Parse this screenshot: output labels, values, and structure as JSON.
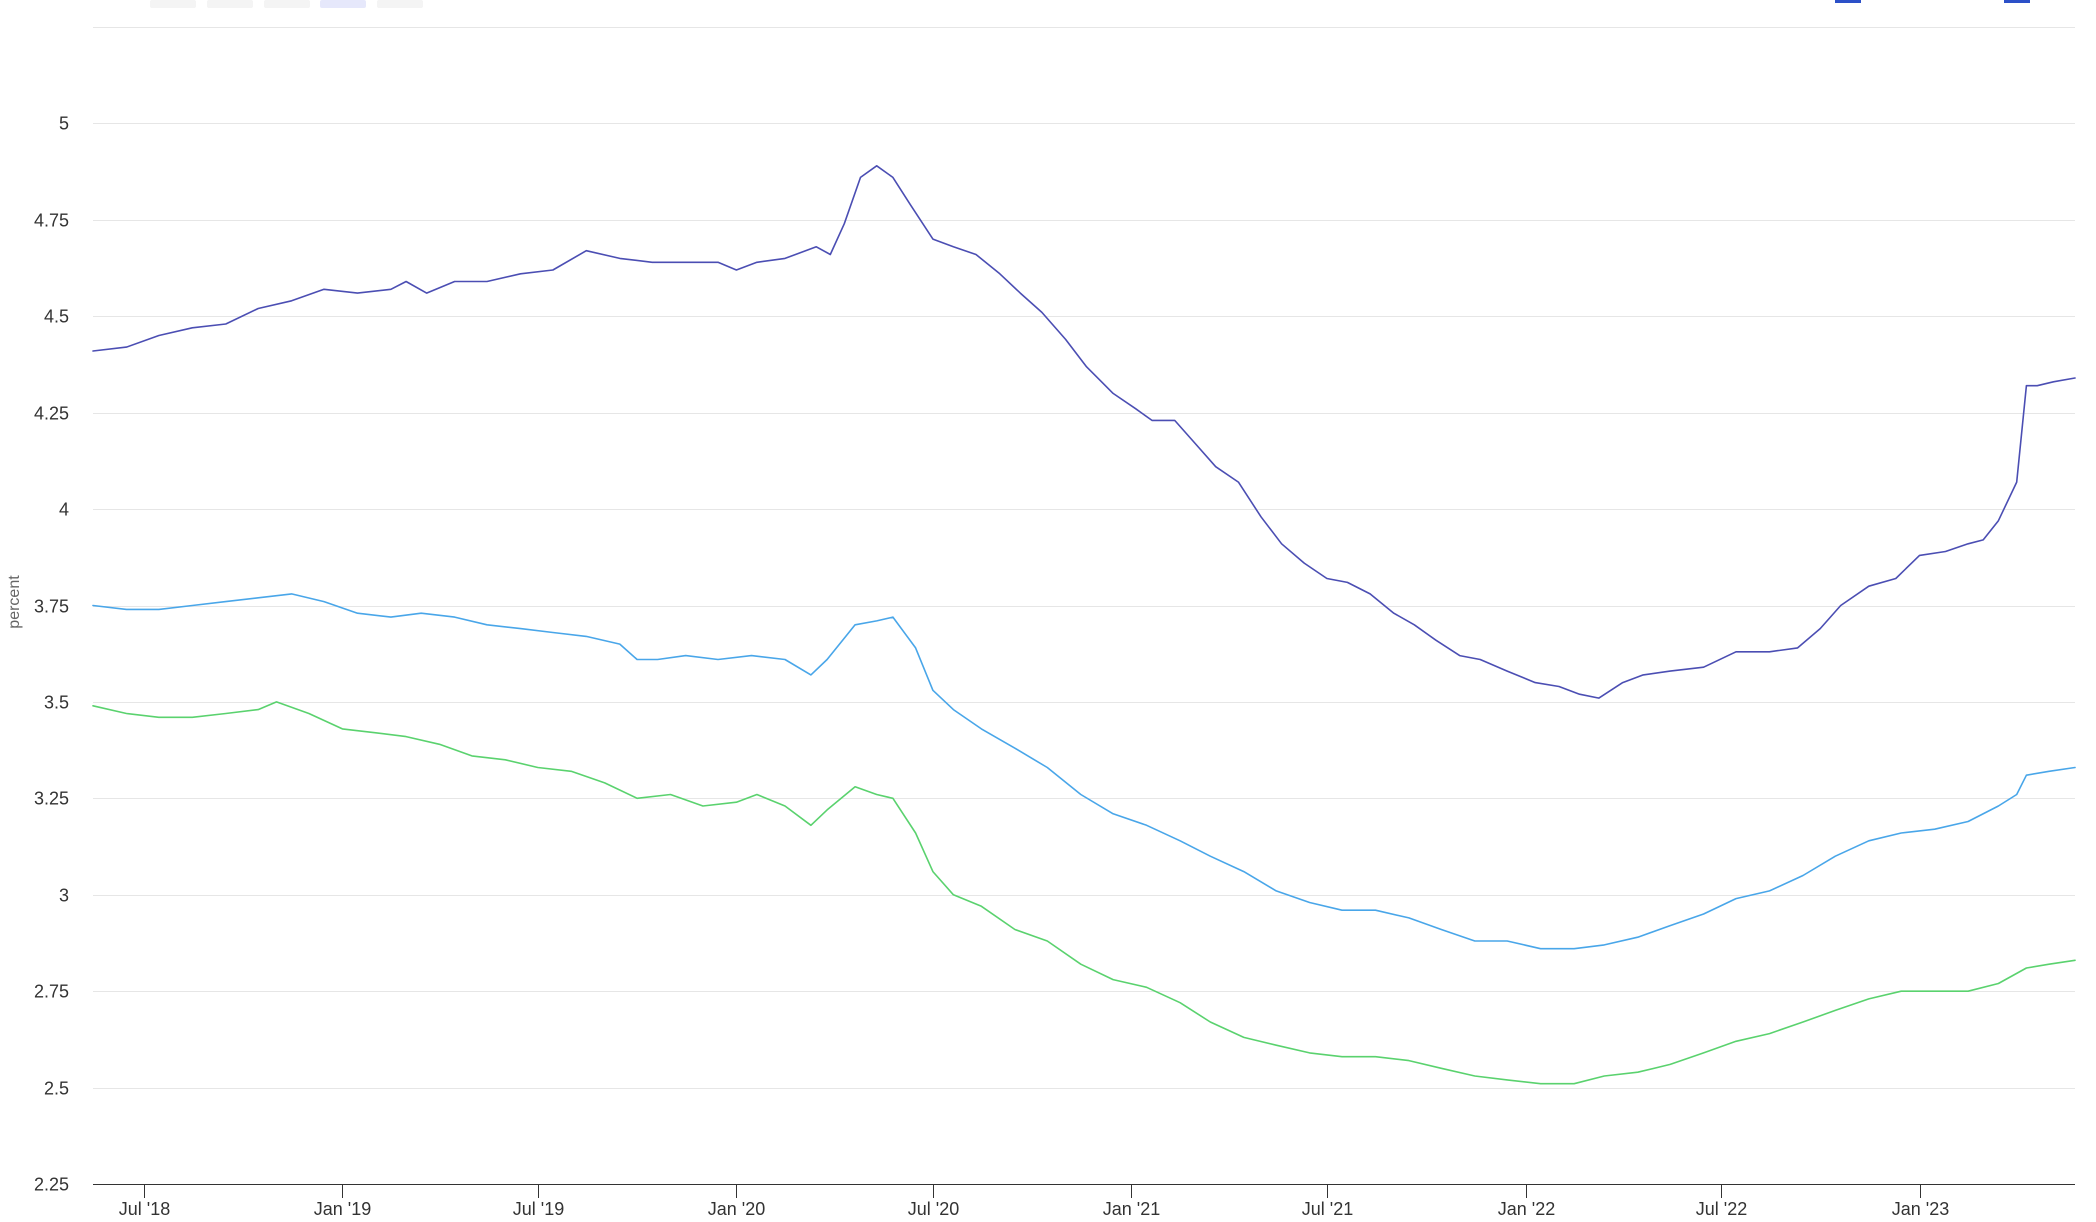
{
  "chart_data": {
    "type": "line",
    "ylabel": "percent",
    "ylim": [
      2.25,
      5.25
    ],
    "y_ticks": [
      "2.25",
      "2.5",
      "2.75",
      "3",
      "3.25",
      "3.5",
      "3.75",
      "4",
      "4.25",
      "4.5",
      "4.75",
      "5"
    ],
    "xlim": [
      "2018-05-15",
      "2023-05-25"
    ],
    "x_ticks": [
      {
        "date": "2018-07-01",
        "label": "Jul '18"
      },
      {
        "date": "2019-01-01",
        "label": "Jan '19"
      },
      {
        "date": "2019-07-01",
        "label": "Jul '19"
      },
      {
        "date": "2020-01-01",
        "label": "Jan '20"
      },
      {
        "date": "2020-07-01",
        "label": "Jul '20"
      },
      {
        "date": "2021-01-01",
        "label": "Jan '21"
      },
      {
        "date": "2021-07-01",
        "label": "Jul '21"
      },
      {
        "date": "2022-01-01",
        "label": "Jan '22"
      },
      {
        "date": "2022-07-01",
        "label": "Jul '22"
      },
      {
        "date": "2023-01-01",
        "label": "Jan '23"
      }
    ],
    "grid": true,
    "legend": "none",
    "range_selector": {
      "buttons": 5,
      "active_index": 3
    },
    "series": [
      {
        "color": "#4b4eb3",
        "points": [
          [
            "2018-05-15",
            4.41
          ],
          [
            "2018-06-15",
            4.42
          ],
          [
            "2018-07-15",
            4.45
          ],
          [
            "2018-08-15",
            4.47
          ],
          [
            "2018-09-15",
            4.48
          ],
          [
            "2018-10-15",
            4.52
          ],
          [
            "2018-11-15",
            4.54
          ],
          [
            "2018-12-15",
            4.57
          ],
          [
            "2019-01-15",
            4.56
          ],
          [
            "2019-02-15",
            4.57
          ],
          [
            "2019-03-01",
            4.59
          ],
          [
            "2019-03-20",
            4.56
          ],
          [
            "2019-04-15",
            4.59
          ],
          [
            "2019-05-15",
            4.59
          ],
          [
            "2019-06-15",
            4.61
          ],
          [
            "2019-07-15",
            4.62
          ],
          [
            "2019-08-15",
            4.67
          ],
          [
            "2019-09-15",
            4.65
          ],
          [
            "2019-10-15",
            4.64
          ],
          [
            "2019-11-15",
            4.64
          ],
          [
            "2019-12-15",
            4.64
          ],
          [
            "2020-01-01",
            4.62
          ],
          [
            "2020-01-20",
            4.64
          ],
          [
            "2020-02-15",
            4.65
          ],
          [
            "2020-03-15",
            4.68
          ],
          [
            "2020-03-28",
            4.66
          ],
          [
            "2020-04-10",
            4.74
          ],
          [
            "2020-04-25",
            4.86
          ],
          [
            "2020-05-10",
            4.89
          ],
          [
            "2020-05-25",
            4.86
          ],
          [
            "2020-06-10",
            4.79
          ],
          [
            "2020-07-01",
            4.7
          ],
          [
            "2020-07-20",
            4.68
          ],
          [
            "2020-08-10",
            4.66
          ],
          [
            "2020-09-01",
            4.61
          ],
          [
            "2020-09-20",
            4.56
          ],
          [
            "2020-10-10",
            4.51
          ],
          [
            "2020-11-01",
            4.44
          ],
          [
            "2020-11-20",
            4.37
          ],
          [
            "2020-12-15",
            4.3
          ],
          [
            "2021-01-05",
            4.26
          ],
          [
            "2021-01-20",
            4.23
          ],
          [
            "2021-02-10",
            4.23
          ],
          [
            "2021-03-01",
            4.17
          ],
          [
            "2021-03-20",
            4.11
          ],
          [
            "2021-04-10",
            4.07
          ],
          [
            "2021-05-01",
            3.98
          ],
          [
            "2021-05-20",
            3.91
          ],
          [
            "2021-06-10",
            3.86
          ],
          [
            "2021-07-01",
            3.82
          ],
          [
            "2021-07-20",
            3.81
          ],
          [
            "2021-08-10",
            3.78
          ],
          [
            "2021-09-01",
            3.73
          ],
          [
            "2021-09-20",
            3.7
          ],
          [
            "2021-10-10",
            3.66
          ],
          [
            "2021-11-01",
            3.62
          ],
          [
            "2021-11-20",
            3.61
          ],
          [
            "2021-12-15",
            3.58
          ],
          [
            "2022-01-10",
            3.55
          ],
          [
            "2022-02-01",
            3.54
          ],
          [
            "2022-02-20",
            3.52
          ],
          [
            "2022-03-10",
            3.51
          ],
          [
            "2022-04-01",
            3.55
          ],
          [
            "2022-04-20",
            3.57
          ],
          [
            "2022-05-15",
            3.58
          ],
          [
            "2022-06-15",
            3.59
          ],
          [
            "2022-07-15",
            3.63
          ],
          [
            "2022-08-15",
            3.63
          ],
          [
            "2022-09-10",
            3.64
          ],
          [
            "2022-10-01",
            3.69
          ],
          [
            "2022-10-20",
            3.75
          ],
          [
            "2022-11-15",
            3.8
          ],
          [
            "2022-12-10",
            3.82
          ],
          [
            "2023-01-01",
            3.88
          ],
          [
            "2023-01-25",
            3.89
          ],
          [
            "2023-02-15",
            3.91
          ],
          [
            "2023-03-01",
            3.92
          ],
          [
            "2023-03-15",
            3.97
          ],
          [
            "2023-04-01",
            4.07
          ],
          [
            "2023-04-10",
            4.32
          ],
          [
            "2023-04-20",
            4.32
          ],
          [
            "2023-05-05",
            4.33
          ],
          [
            "2023-05-25",
            4.34
          ]
        ]
      },
      {
        "color": "#49a6e9",
        "points": [
          [
            "2018-05-15",
            3.75
          ],
          [
            "2018-06-15",
            3.74
          ],
          [
            "2018-07-15",
            3.74
          ],
          [
            "2018-08-15",
            3.75
          ],
          [
            "2018-09-15",
            3.76
          ],
          [
            "2018-10-15",
            3.77
          ],
          [
            "2018-11-15",
            3.78
          ],
          [
            "2018-12-15",
            3.76
          ],
          [
            "2019-01-15",
            3.73
          ],
          [
            "2019-02-15",
            3.72
          ],
          [
            "2019-03-15",
            3.73
          ],
          [
            "2019-04-15",
            3.72
          ],
          [
            "2019-05-15",
            3.7
          ],
          [
            "2019-06-15",
            3.69
          ],
          [
            "2019-07-15",
            3.68
          ],
          [
            "2019-08-15",
            3.67
          ],
          [
            "2019-09-15",
            3.65
          ],
          [
            "2019-10-01",
            3.61
          ],
          [
            "2019-10-20",
            3.61
          ],
          [
            "2019-11-15",
            3.62
          ],
          [
            "2019-12-15",
            3.61
          ],
          [
            "2020-01-15",
            3.62
          ],
          [
            "2020-02-15",
            3.61
          ],
          [
            "2020-03-10",
            3.57
          ],
          [
            "2020-03-25",
            3.61
          ],
          [
            "2020-04-20",
            3.7
          ],
          [
            "2020-05-10",
            3.71
          ],
          [
            "2020-05-25",
            3.72
          ],
          [
            "2020-06-15",
            3.64
          ],
          [
            "2020-07-01",
            3.53
          ],
          [
            "2020-07-20",
            3.48
          ],
          [
            "2020-08-15",
            3.43
          ],
          [
            "2020-09-15",
            3.38
          ],
          [
            "2020-10-15",
            3.33
          ],
          [
            "2020-11-15",
            3.26
          ],
          [
            "2020-12-15",
            3.21
          ],
          [
            "2021-01-15",
            3.18
          ],
          [
            "2021-02-15",
            3.14
          ],
          [
            "2021-03-15",
            3.1
          ],
          [
            "2021-04-15",
            3.06
          ],
          [
            "2021-05-15",
            3.01
          ],
          [
            "2021-06-15",
            2.98
          ],
          [
            "2021-07-15",
            2.96
          ],
          [
            "2021-08-15",
            2.96
          ],
          [
            "2021-09-15",
            2.94
          ],
          [
            "2021-10-15",
            2.91
          ],
          [
            "2021-11-15",
            2.88
          ],
          [
            "2021-12-15",
            2.88
          ],
          [
            "2022-01-15",
            2.86
          ],
          [
            "2022-02-15",
            2.86
          ],
          [
            "2022-03-15",
            2.87
          ],
          [
            "2022-04-15",
            2.89
          ],
          [
            "2022-05-15",
            2.92
          ],
          [
            "2022-06-15",
            2.95
          ],
          [
            "2022-07-15",
            2.99
          ],
          [
            "2022-08-15",
            3.01
          ],
          [
            "2022-09-15",
            3.05
          ],
          [
            "2022-10-15",
            3.1
          ],
          [
            "2022-11-15",
            3.14
          ],
          [
            "2022-12-15",
            3.16
          ],
          [
            "2023-01-15",
            3.17
          ],
          [
            "2023-02-15",
            3.19
          ],
          [
            "2023-03-15",
            3.23
          ],
          [
            "2023-04-01",
            3.26
          ],
          [
            "2023-04-10",
            3.31
          ],
          [
            "2023-05-01",
            3.32
          ],
          [
            "2023-05-25",
            3.33
          ]
        ]
      },
      {
        "color": "#5ad26e",
        "points": [
          [
            "2018-05-15",
            3.49
          ],
          [
            "2018-06-15",
            3.47
          ],
          [
            "2018-07-15",
            3.46
          ],
          [
            "2018-08-15",
            3.46
          ],
          [
            "2018-09-15",
            3.47
          ],
          [
            "2018-10-15",
            3.48
          ],
          [
            "2018-11-01",
            3.5
          ],
          [
            "2018-12-01",
            3.47
          ],
          [
            "2019-01-01",
            3.43
          ],
          [
            "2019-02-01",
            3.42
          ],
          [
            "2019-03-01",
            3.41
          ],
          [
            "2019-04-01",
            3.39
          ],
          [
            "2019-05-01",
            3.36
          ],
          [
            "2019-06-01",
            3.35
          ],
          [
            "2019-07-01",
            3.33
          ],
          [
            "2019-08-01",
            3.32
          ],
          [
            "2019-09-01",
            3.29
          ],
          [
            "2019-10-01",
            3.25
          ],
          [
            "2019-11-01",
            3.26
          ],
          [
            "2019-12-01",
            3.23
          ],
          [
            "2020-01-01",
            3.24
          ],
          [
            "2020-01-20",
            3.26
          ],
          [
            "2020-02-15",
            3.23
          ],
          [
            "2020-03-10",
            3.18
          ],
          [
            "2020-03-25",
            3.22
          ],
          [
            "2020-04-20",
            3.28
          ],
          [
            "2020-05-10",
            3.26
          ],
          [
            "2020-05-25",
            3.25
          ],
          [
            "2020-06-15",
            3.16
          ],
          [
            "2020-07-01",
            3.06
          ],
          [
            "2020-07-20",
            3.0
          ],
          [
            "2020-08-15",
            2.97
          ],
          [
            "2020-09-15",
            2.91
          ],
          [
            "2020-10-15",
            2.88
          ],
          [
            "2020-11-15",
            2.82
          ],
          [
            "2020-12-15",
            2.78
          ],
          [
            "2021-01-15",
            2.76
          ],
          [
            "2021-02-15",
            2.72
          ],
          [
            "2021-03-15",
            2.67
          ],
          [
            "2021-04-15",
            2.63
          ],
          [
            "2021-05-15",
            2.61
          ],
          [
            "2021-06-15",
            2.59
          ],
          [
            "2021-07-15",
            2.58
          ],
          [
            "2021-08-15",
            2.58
          ],
          [
            "2021-09-15",
            2.57
          ],
          [
            "2021-10-15",
            2.55
          ],
          [
            "2021-11-15",
            2.53
          ],
          [
            "2021-12-15",
            2.52
          ],
          [
            "2022-01-15",
            2.51
          ],
          [
            "2022-02-15",
            2.51
          ],
          [
            "2022-03-15",
            2.53
          ],
          [
            "2022-04-15",
            2.54
          ],
          [
            "2022-05-15",
            2.56
          ],
          [
            "2022-06-15",
            2.59
          ],
          [
            "2022-07-15",
            2.62
          ],
          [
            "2022-08-15",
            2.64
          ],
          [
            "2022-09-15",
            2.67
          ],
          [
            "2022-10-15",
            2.7
          ],
          [
            "2022-11-15",
            2.73
          ],
          [
            "2022-12-15",
            2.75
          ],
          [
            "2023-01-15",
            2.75
          ],
          [
            "2023-02-15",
            2.75
          ],
          [
            "2023-03-15",
            2.77
          ],
          [
            "2023-04-10",
            2.81
          ],
          [
            "2023-05-01",
            2.82
          ],
          [
            "2023-05-25",
            2.83
          ]
        ]
      }
    ]
  }
}
